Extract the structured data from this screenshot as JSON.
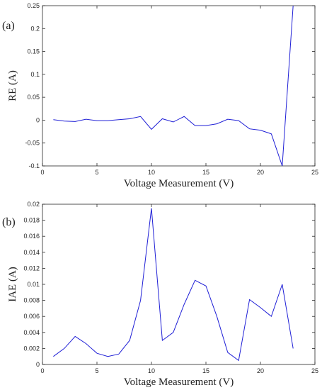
{
  "chart_data": [
    {
      "panel_label": "(a)",
      "type": "line",
      "xlabel": "Voltage Measurement (V)",
      "ylabel": "RE (A)",
      "xlim": [
        0,
        25
      ],
      "ylim": [
        -0.1,
        0.25
      ],
      "x_ticks": [
        "0",
        "5",
        "10",
        "15",
        "20",
        "25"
      ],
      "y_ticks": [
        "-0.1",
        "-0.05",
        "0",
        "0.05",
        "0.1",
        "0.15",
        "0.2",
        "0.25"
      ],
      "grid": false,
      "line_color": "#1f1fd6",
      "x": [
        1,
        2,
        3,
        4,
        5,
        6,
        7,
        8,
        9,
        10,
        11,
        12,
        13,
        14,
        15,
        16,
        17,
        18,
        19,
        20,
        21,
        22,
        23
      ],
      "y": [
        0.001,
        -0.002,
        -0.003,
        0.002,
        -0.001,
        -0.001,
        0.001,
        0.003,
        0.008,
        -0.02,
        0.003,
        -0.004,
        0.008,
        -0.012,
        -0.012,
        -0.008,
        0.002,
        -0.001,
        -0.019,
        -0.022,
        -0.03,
        -0.1,
        0.25
      ]
    },
    {
      "panel_label": "(b)",
      "type": "line",
      "xlabel": "Voltage Measurement (V)",
      "ylabel": "IAE (A)",
      "xlim": [
        0,
        25
      ],
      "ylim": [
        0,
        0.02
      ],
      "x_ticks": [
        "0",
        "5",
        "10",
        "15",
        "20",
        "25"
      ],
      "y_ticks": [
        "0",
        "0.002",
        "0.004",
        "0.006",
        "0.008",
        "0.01",
        "0.012",
        "0.014",
        "0.016",
        "0.018",
        "0.02"
      ],
      "grid": false,
      "line_color": "#1f1fd6",
      "x": [
        1,
        2,
        3,
        4,
        5,
        6,
        7,
        8,
        9,
        10,
        11,
        12,
        13,
        14,
        15,
        16,
        17,
        18,
        19,
        20,
        21,
        22,
        23
      ],
      "y": [
        0.001,
        0.002,
        0.0035,
        0.0026,
        0.0014,
        0.001,
        0.0013,
        0.003,
        0.008,
        0.0195,
        0.003,
        0.004,
        0.0075,
        0.0105,
        0.0098,
        0.006,
        0.0015,
        0.0005,
        0.0081,
        0.0071,
        0.006,
        0.01,
        0.002
      ]
    }
  ]
}
